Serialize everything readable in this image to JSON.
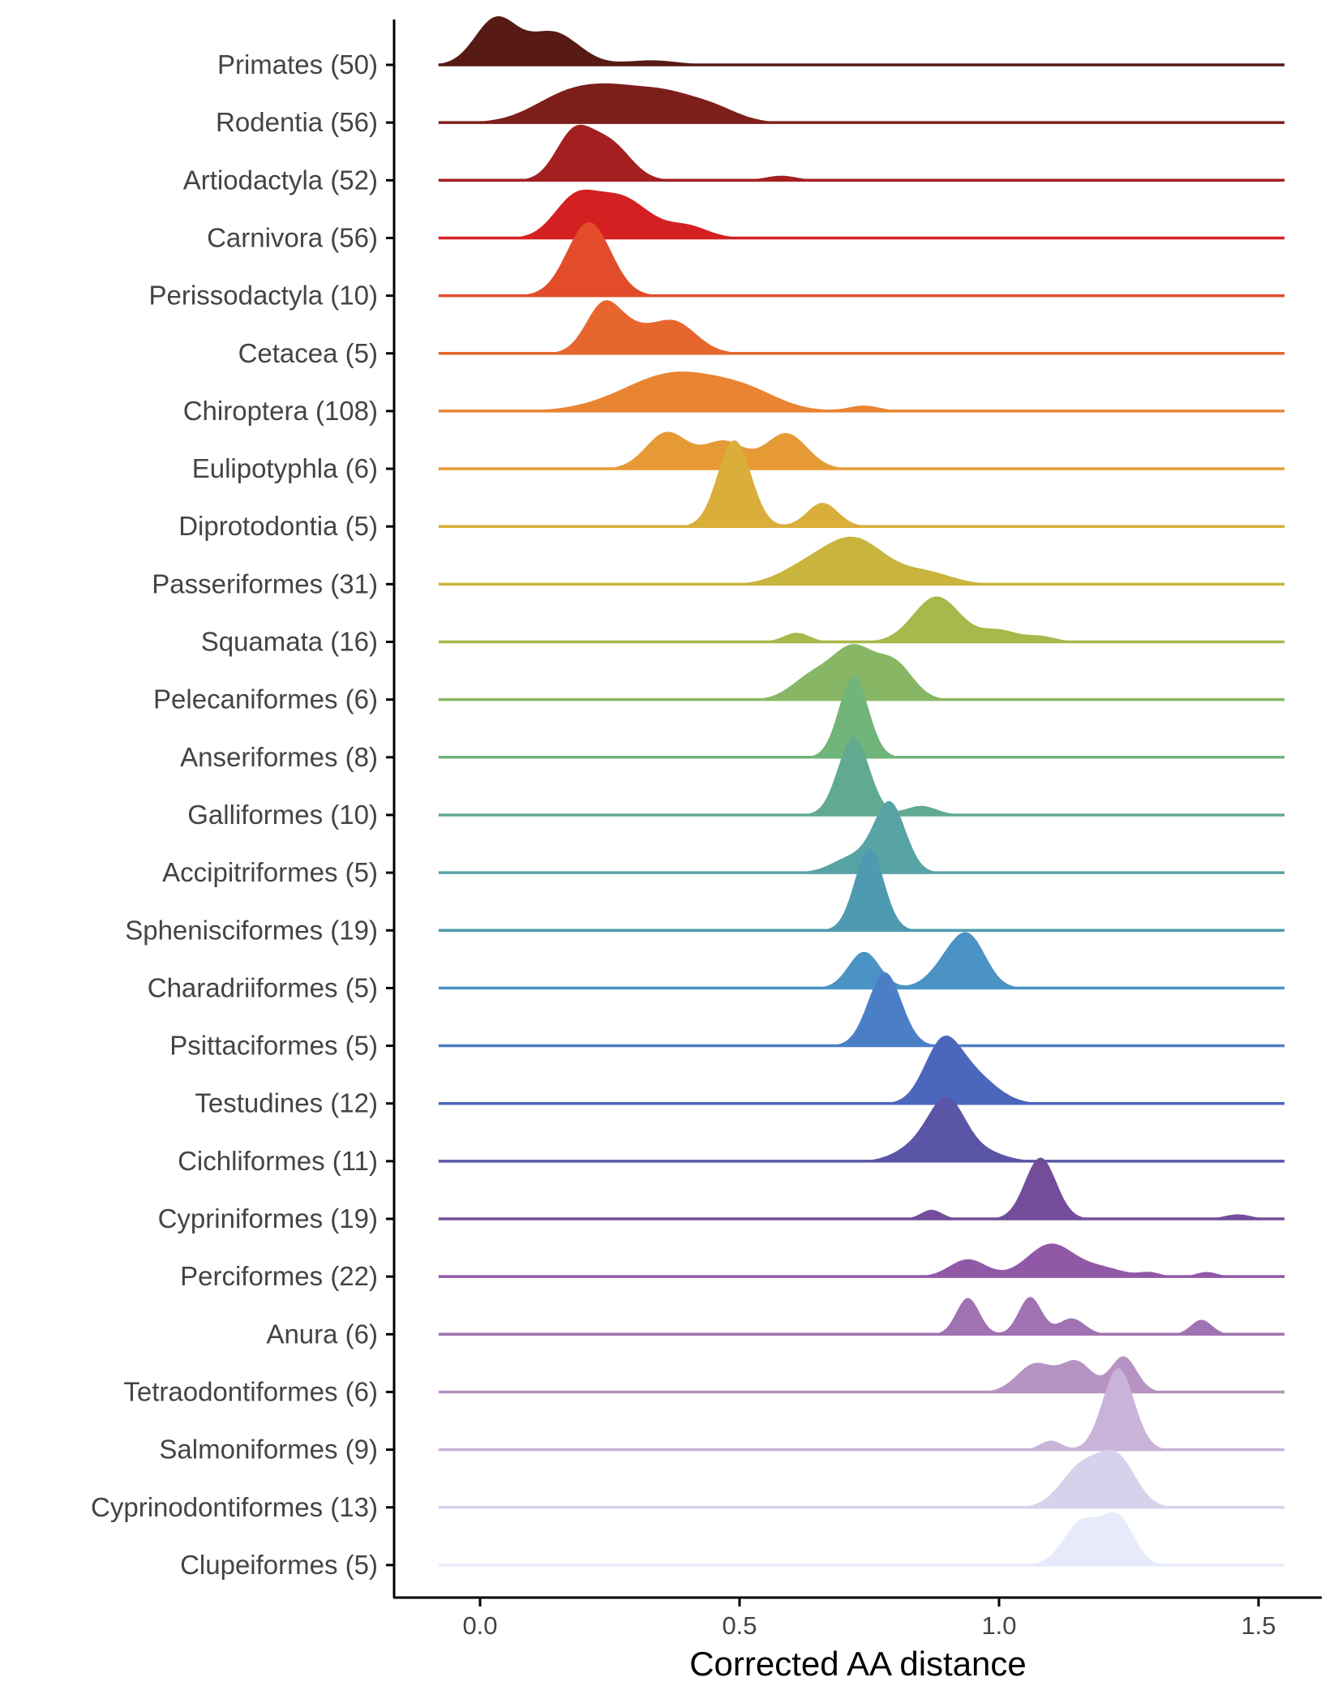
{
  "chart_data": {
    "type": "area",
    "subtype": "ridgeline-density",
    "title": "",
    "xlabel": "Corrected AA distance",
    "ylabel": "",
    "xlim": [
      -0.17,
      1.62
    ],
    "x_ticks": [
      {
        "value": 0.0,
        "label": "0.0"
      },
      {
        "value": 0.5,
        "label": "0.5"
      },
      {
        "value": 1.0,
        "label": "1.0"
      },
      {
        "value": 1.5,
        "label": "1.5"
      }
    ],
    "x_range": [
      -0.08,
      1.55
    ],
    "grid": false,
    "legend": "none",
    "series": [
      {
        "label": "Primates (50)",
        "color": "#571a14",
        "peaks": [
          [
            0.03,
            1.0,
            0.04
          ],
          [
            0.14,
            0.72,
            0.05
          ],
          [
            0.33,
            0.1,
            0.05
          ]
        ]
      },
      {
        "label": "Rodentia (56)",
        "color": "#7d1e1b",
        "peaks": [
          [
            0.18,
            0.68,
            0.07
          ],
          [
            0.35,
            0.62,
            0.06
          ],
          [
            0.45,
            0.28,
            0.05
          ],
          [
            0.26,
            0.3,
            0.05
          ]
        ]
      },
      {
        "label": "Artiodactyla (52)",
        "color": "#a41f1f",
        "peaks": [
          [
            0.18,
            1.0,
            0.035
          ],
          [
            0.25,
            0.8,
            0.04
          ],
          [
            0.58,
            0.1,
            0.03
          ]
        ]
      },
      {
        "label": "Carnivora (56)",
        "color": "#d52022",
        "peaks": [
          [
            0.18,
            0.75,
            0.04
          ],
          [
            0.27,
            0.9,
            0.055
          ],
          [
            0.4,
            0.25,
            0.04
          ]
        ]
      },
      {
        "label": "Perissodactyla (10)",
        "color": "#e24c2b",
        "peaks": [
          [
            0.21,
            1.62,
            0.042
          ]
        ]
      },
      {
        "label": "Cetacea (5)",
        "color": "#e6662e",
        "peaks": [
          [
            0.24,
            1.12,
            0.035
          ],
          [
            0.37,
            0.72,
            0.045
          ],
          [
            0.3,
            0.25,
            0.03
          ]
        ]
      },
      {
        "label": "Chiroptera (108)",
        "color": "#e88432",
        "peaks": [
          [
            0.38,
            0.85,
            0.1
          ],
          [
            0.52,
            0.25,
            0.06
          ],
          [
            0.74,
            0.12,
            0.03
          ]
        ]
      },
      {
        "label": "Eulipotyphla (6)",
        "color": "#e69a36",
        "peaks": [
          [
            0.36,
            0.8,
            0.04
          ],
          [
            0.47,
            0.6,
            0.04
          ],
          [
            0.59,
            0.78,
            0.04
          ]
        ]
      },
      {
        "label": "Diprotodontia (5)",
        "color": "#d9ae3a",
        "peaks": [
          [
            0.49,
            1.9,
            0.032
          ],
          [
            0.66,
            0.52,
            0.03
          ]
        ]
      },
      {
        "label": "Passeriformes (31)",
        "color": "#c9b43d",
        "peaks": [
          [
            0.72,
            1.0,
            0.06
          ],
          [
            0.62,
            0.28,
            0.05
          ],
          [
            0.86,
            0.25,
            0.05
          ]
        ]
      },
      {
        "label": "Squamata (16)",
        "color": "#a8b84a",
        "peaks": [
          [
            0.88,
            1.0,
            0.045
          ],
          [
            0.61,
            0.2,
            0.025
          ],
          [
            1.0,
            0.25,
            0.035
          ],
          [
            1.08,
            0.12,
            0.03
          ]
        ]
      },
      {
        "label": "Pelecaniformes (6)",
        "color": "#87b764",
        "peaks": [
          [
            0.72,
            1.1,
            0.04
          ],
          [
            0.64,
            0.5,
            0.04
          ],
          [
            0.8,
            0.75,
            0.035
          ]
        ]
      },
      {
        "label": "Anseriformes (8)",
        "color": "#72b57a",
        "peaks": [
          [
            0.72,
            1.8,
            0.028
          ]
        ]
      },
      {
        "label": "Galliformes (10)",
        "color": "#61aa90",
        "peaks": [
          [
            0.72,
            1.72,
            0.03
          ],
          [
            0.85,
            0.2,
            0.03
          ]
        ]
      },
      {
        "label": "Accipitriformes (5)",
        "color": "#58a3a5",
        "peaks": [
          [
            0.79,
            1.5,
            0.03
          ],
          [
            0.72,
            0.35,
            0.04
          ]
        ]
      },
      {
        "label": "Sphenisciformes (19)",
        "color": "#4e9ab1",
        "peaks": [
          [
            0.75,
            1.8,
            0.028
          ]
        ]
      },
      {
        "label": "Charadriiformes (5)",
        "color": "#4a93c4",
        "peaks": [
          [
            0.74,
            0.8,
            0.03
          ],
          [
            0.92,
            0.85,
            0.04
          ],
          [
            0.95,
            0.5,
            0.03
          ]
        ]
      },
      {
        "label": "Psittaciformes (5)",
        "color": "#4a7fc8",
        "peaks": [
          [
            0.78,
            1.62,
            0.032
          ]
        ]
      },
      {
        "label": "Testudines (12)",
        "color": "#4b67bd",
        "peaks": [
          [
            0.89,
            1.22,
            0.035
          ],
          [
            0.95,
            0.6,
            0.045
          ]
        ]
      },
      {
        "label": "Cichliformes (11)",
        "color": "#5a55a6",
        "peaks": [
          [
            0.9,
            1.28,
            0.035
          ],
          [
            0.84,
            0.3,
            0.04
          ],
          [
            0.97,
            0.2,
            0.04
          ]
        ]
      },
      {
        "label": "Cypriniformes (19)",
        "color": "#734d9a",
        "peaks": [
          [
            1.08,
            1.35,
            0.03
          ],
          [
            0.87,
            0.2,
            0.02
          ],
          [
            1.46,
            0.1,
            0.025
          ]
        ]
      },
      {
        "label": "Perciformes (22)",
        "color": "#9258a8",
        "peaks": [
          [
            1.1,
            0.72,
            0.045
          ],
          [
            0.94,
            0.38,
            0.035
          ],
          [
            1.2,
            0.18,
            0.04
          ],
          [
            1.29,
            0.09,
            0.02
          ],
          [
            1.4,
            0.1,
            0.02
          ]
        ]
      },
      {
        "label": "Anura (6)",
        "color": "#a072b1",
        "peaks": [
          [
            0.94,
            0.8,
            0.022
          ],
          [
            1.06,
            0.82,
            0.022
          ],
          [
            1.14,
            0.35,
            0.025
          ],
          [
            1.39,
            0.32,
            0.02
          ]
        ]
      },
      {
        "label": "Tetraodontiformes (6)",
        "color": "#b793c3",
        "peaks": [
          [
            1.07,
            0.62,
            0.035
          ],
          [
            1.15,
            0.65,
            0.03
          ],
          [
            1.24,
            0.78,
            0.025
          ]
        ]
      },
      {
        "label": "Salmoniformes (9)",
        "color": "#c9b3d8",
        "peaks": [
          [
            1.23,
            1.8,
            0.03
          ],
          [
            1.1,
            0.2,
            0.02
          ]
        ]
      },
      {
        "label": "Cyprinodontiformes (13)",
        "color": "#d8d1eb",
        "peaks": [
          [
            1.16,
            0.9,
            0.04
          ],
          [
            1.23,
            1.0,
            0.035
          ]
        ]
      },
      {
        "label": "Clupeiformes (5)",
        "color": "#e6eafa",
        "peaks": [
          [
            1.16,
            0.95,
            0.035
          ],
          [
            1.23,
            1.0,
            0.03
          ]
        ]
      }
    ]
  }
}
